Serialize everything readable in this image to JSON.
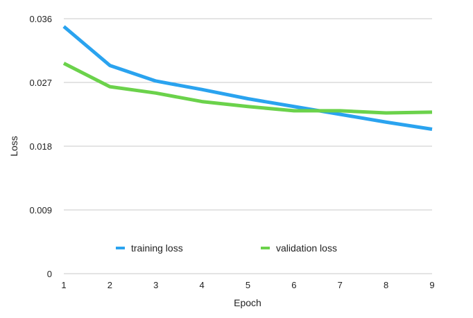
{
  "chart_data": {
    "type": "line",
    "title": "",
    "xlabel": "Epoch",
    "ylabel": "Loss",
    "x": [
      1,
      2,
      3,
      4,
      5,
      6,
      7,
      8,
      9
    ],
    "xlim": [
      1,
      9
    ],
    "ylim": [
      0,
      0.036
    ],
    "x_ticks": [
      "1",
      "2",
      "3",
      "4",
      "5",
      "6",
      "7",
      "8",
      "9"
    ],
    "y_ticks": [
      {
        "value": 0,
        "label": "0"
      },
      {
        "value": 0.009,
        "label": "0.009"
      },
      {
        "value": 0.018,
        "label": "0.018"
      },
      {
        "value": 0.027,
        "label": "0.027"
      },
      {
        "value": 0.036,
        "label": "0.036"
      }
    ],
    "grid": "horizontal",
    "legend_position": "bottom-center",
    "series": [
      {
        "name": "training loss",
        "color": "#2aa3ef",
        "values": [
          0.0349,
          0.0294,
          0.0272,
          0.026,
          0.0247,
          0.0236,
          0.0225,
          0.0214,
          0.0204
        ]
      },
      {
        "name": "validation loss",
        "color": "#6bd24b",
        "values": [
          0.0297,
          0.0264,
          0.0255,
          0.0243,
          0.0236,
          0.023,
          0.023,
          0.0227,
          0.0228
        ]
      }
    ]
  }
}
